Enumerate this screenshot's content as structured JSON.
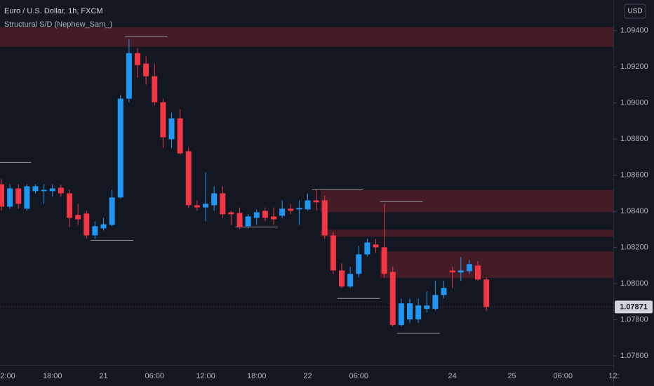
{
  "chart_data": {
    "type": "candlestick",
    "title": "Euro / U.S. Dollar, 1h, FXCM",
    "subtitle": "Structural S/D (Nephew_Sam_)",
    "currency": "USD",
    "categories": [
      "2:00",
      null,
      null,
      null,
      null,
      null,
      "18:00",
      null,
      null,
      null,
      null,
      null,
      "21",
      null,
      null,
      null,
      null,
      null,
      "06:00",
      null,
      null,
      null,
      null,
      null,
      "12:00",
      null,
      null,
      null,
      null,
      null,
      "18:00",
      null,
      null,
      null,
      null,
      null,
      "22",
      null,
      null,
      null,
      null,
      null,
      "06:00",
      null,
      null,
      null,
      null,
      null,
      null,
      null,
      null,
      null,
      null,
      "24",
      null,
      null,
      null,
      null,
      null,
      null,
      "25",
      null,
      null,
      null,
      null,
      null,
      "06:00",
      null,
      null,
      null,
      null,
      null,
      "12:"
    ],
    "open": [
      1.0855,
      1.08426,
      1.08527,
      1.08415,
      1.08512,
      1.08512,
      1.08512,
      1.08531,
      1.085,
      1.0838,
      1.08388,
      1.08267,
      1.08306,
      1.08325,
      1.08477,
      1.09024,
      1.09276,
      1.09218,
      1.09148,
      1.09004,
      1.08799,
      1.08915,
      1.08733,
      1.08434,
      1.08422,
      1.08434,
      1.085,
      1.08395,
      1.08391,
      1.08318,
      1.08364,
      1.08403,
      1.08372,
      1.08376,
      1.08415,
      1.08411,
      1.08411,
      1.08461,
      1.08461,
      1.08267,
      1.08073,
      1.07984,
      1.08054,
      1.08162,
      1.08217,
      1.08201,
      1.08065,
      1.07771,
      1.07802,
      1.07802,
      1.0786,
      1.0786,
      1.07937,
      1.08073,
      1.08062,
      1.08069,
      1.081,
      1.08023,
      null,
      null,
      null,
      null,
      null,
      null,
      null,
      null,
      null,
      null,
      null,
      null,
      null,
      null,
      null
    ],
    "high": [
      1.08578,
      1.0855,
      1.0855,
      1.0855,
      1.0855,
      1.0855,
      1.0855,
      1.08547,
      1.08519,
      1.08442,
      1.08403,
      1.08345,
      1.08364,
      1.08519,
      1.09043,
      1.09354,
      1.09303,
      1.09257,
      1.09218,
      1.09024,
      1.08946,
      1.08966,
      1.08752,
      1.08461,
      1.08616,
      1.08539,
      1.08539,
      1.08403,
      1.08422,
      1.08384,
      1.08411,
      1.08422,
      1.08422,
      1.08461,
      1.08442,
      1.08461,
      1.085,
      1.08519,
      1.08488,
      1.08287,
      1.08112,
      1.08093,
      1.08209,
      1.08248,
      1.08248,
      1.08442,
      1.08093,
      1.07918,
      1.07918,
      1.07918,
      1.07957,
      1.08015,
      1.08015,
      1.08093,
      1.08147,
      1.08131,
      1.08124,
      1.08034,
      null,
      null,
      null,
      null,
      null,
      null,
      null,
      null,
      null,
      null,
      null,
      null,
      null,
      null,
      null
    ],
    "low": [
      1.08403,
      1.08415,
      1.08415,
      1.08403,
      1.085,
      1.08442,
      1.08481,
      1.08481,
      1.08314,
      1.08325,
      1.08248,
      1.08248,
      1.08294,
      1.08318,
      1.08469,
      1.09004,
      1.0914,
      1.09101,
      1.08985,
      1.08752,
      1.08752,
      1.08713,
      1.08419,
      1.08403,
      1.08345,
      1.08403,
      1.08364,
      1.08325,
      1.08302,
      1.08306,
      1.08325,
      1.08345,
      1.08325,
      1.08364,
      1.08384,
      1.08325,
      1.08403,
      1.08403,
      1.08248,
      1.08054,
      1.07976,
      1.07976,
      1.08034,
      1.08151,
      1.0817,
      1.08034,
      1.07763,
      1.07763,
      1.07782,
      1.07782,
      1.0784,
      1.07852,
      1.07918,
      1.07976,
      1.08015,
      1.08054,
      1.08015,
      1.07848,
      null,
      null,
      null,
      null,
      null,
      null,
      null,
      null,
      null,
      null,
      null,
      null,
      null,
      null,
      null
    ],
    "close": [
      1.08426,
      1.08527,
      1.08442,
      1.08539,
      1.08539,
      1.08519,
      1.08527,
      1.085,
      1.08364,
      1.08356,
      1.08267,
      1.08318,
      1.08329,
      1.08477,
      1.09024,
      1.09276,
      1.0921,
      1.09148,
      1.09004,
      1.0881,
      1.08915,
      1.08721,
      1.08434,
      1.08422,
      1.08442,
      1.085,
      1.08384,
      1.08384,
      1.08314,
      1.08372,
      1.08395,
      1.08364,
      1.08356,
      1.08415,
      1.08403,
      1.08419,
      1.08461,
      1.0845,
      1.08267,
      1.08073,
      1.07984,
      1.08054,
      1.08162,
      1.08228,
      1.08201,
      1.08054,
      1.07771,
      1.07891,
      1.07891,
      1.07879,
      1.07879,
      1.07937,
      1.07976,
      1.08062,
      1.08073,
      1.08108,
      1.08023,
      1.07871,
      null,
      null,
      null,
      null,
      null,
      null,
      null,
      null,
      null,
      null,
      null,
      null,
      null,
      null,
      null
    ],
    "up_color": "#2196f3",
    "down_color": "#f23645",
    "zones": [
      {
        "from": 0,
        "top": 1.0942,
        "bottom": 1.09311
      },
      {
        "from": 38,
        "top": 1.08519,
        "bottom": 1.08395
      },
      {
        "from": 38,
        "top": 1.08298,
        "bottom": 1.0826
      },
      {
        "from": 45,
        "top": 1.08178,
        "bottom": 1.08031
      }
    ],
    "zone_color": "rgba(178,40,51,0.3)",
    "levels": [
      {
        "from": 15,
        "to": 19,
        "value": 1.09369
      },
      {
        "from": 0,
        "to": 3,
        "value": 1.08671
      },
      {
        "from": 11,
        "to": 15,
        "value": 1.0824
      },
      {
        "from": 28,
        "to": 32,
        "value": 1.08314
      },
      {
        "from": 37,
        "to": 42,
        "value": 1.08523
      },
      {
        "from": 45,
        "to": 49,
        "value": 1.08454
      },
      {
        "from": 40,
        "to": 44,
        "value": 1.07918
      },
      {
        "from": 47,
        "to": 51,
        "value": 1.07725
      }
    ],
    "level_color": "#9598a1",
    "current_price": 1.07871,
    "ylim": [
      1.0755,
      1.0957
    ],
    "yticks": [
      {
        "value": 1.076,
        "label": "1.07600"
      },
      {
        "value": 1.078,
        "label": "1.07800"
      },
      {
        "value": 1.08,
        "label": "1.08000"
      },
      {
        "value": 1.082,
        "label": "1.08200"
      },
      {
        "value": 1.084,
        "label": "1.08400"
      },
      {
        "value": 1.086,
        "label": "1.08600"
      },
      {
        "value": 1.088,
        "label": "1.08800"
      },
      {
        "value": 1.09,
        "label": "1.09000"
      },
      {
        "value": 1.092,
        "label": "1.09200"
      },
      {
        "value": 1.094,
        "label": "1.09400"
      }
    ]
  }
}
